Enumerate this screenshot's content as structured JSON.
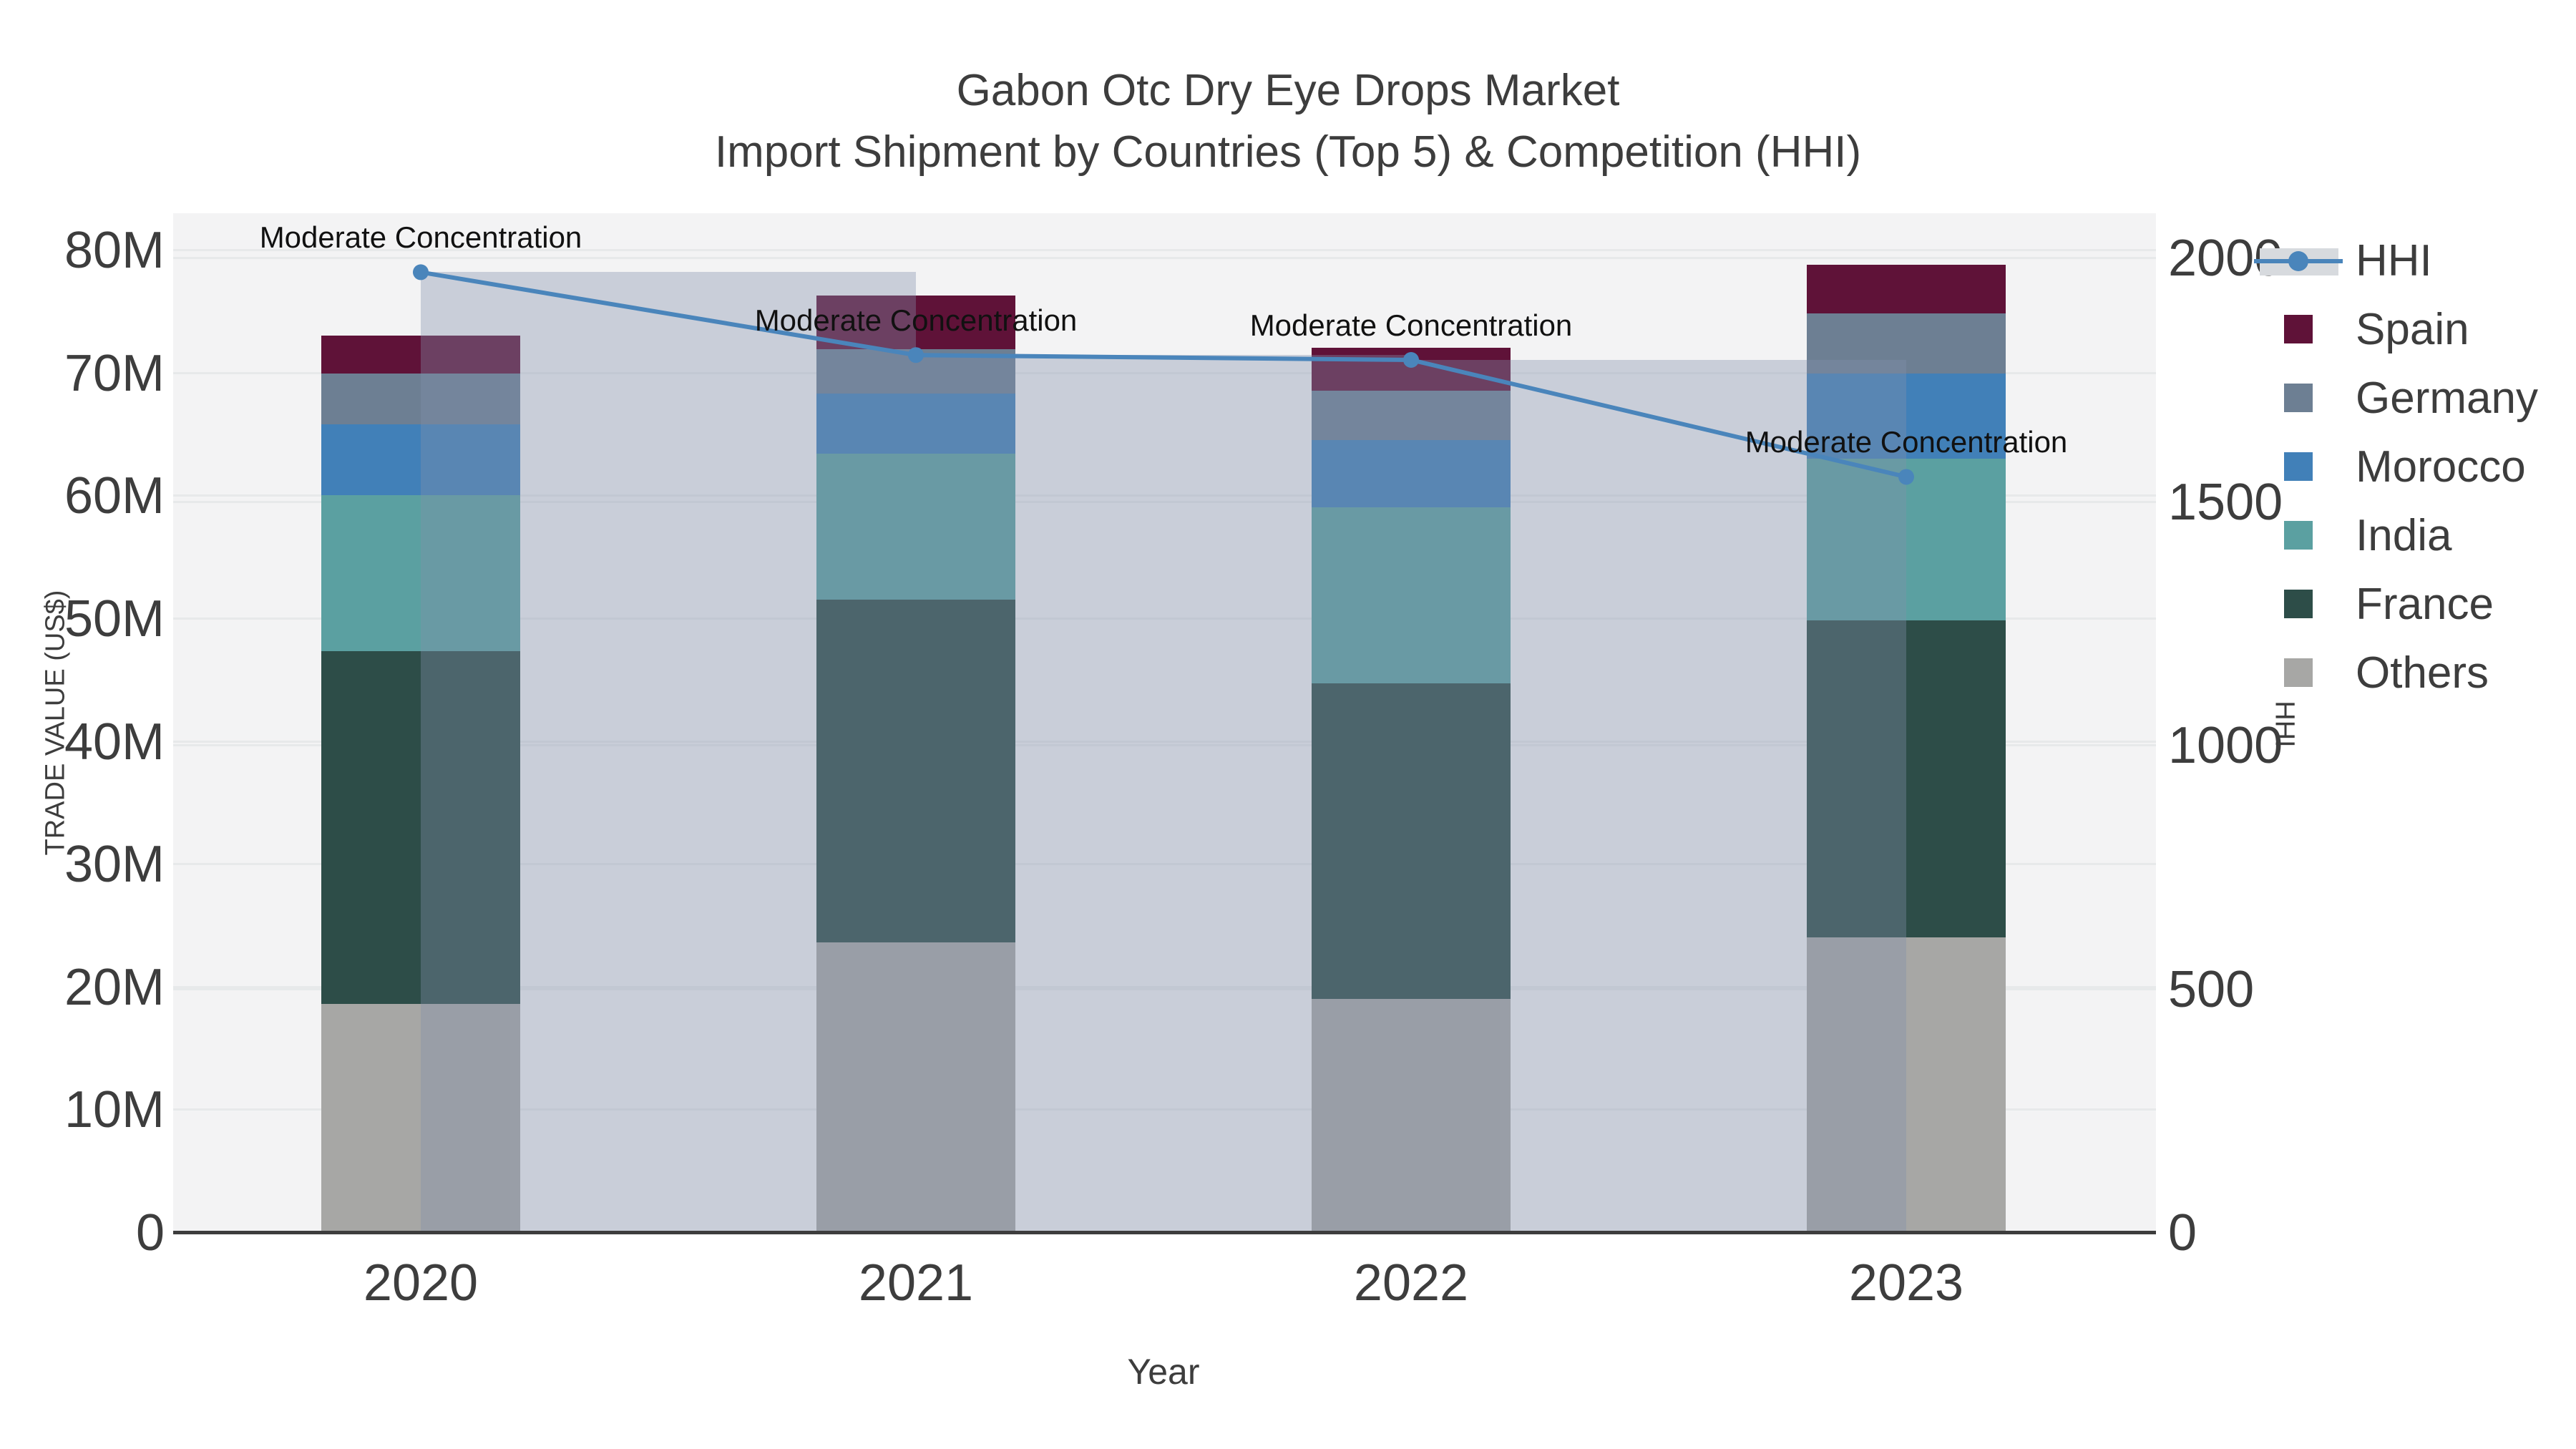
{
  "title": {
    "line1": "Gabon Otc Dry Eye Drops Market",
    "line2": "Import Shipment by Countries (Top 5) & Competition (HHI)"
  },
  "axes": {
    "x": {
      "title": "Year",
      "ticks": [
        "2020",
        "2021",
        "2022",
        "2023"
      ]
    },
    "y_left": {
      "title": "TRADE VALUE (US$)",
      "ticks": [
        "0",
        "10M",
        "20M",
        "30M",
        "40M",
        "50M",
        "60M",
        "70M",
        "80M"
      ]
    },
    "y_right": {
      "title": "HHI",
      "ticks": [
        "0",
        "500",
        "1000",
        "1500",
        "2000"
      ]
    }
  },
  "legend": {
    "items": [
      {
        "label": "HHI",
        "type": "line",
        "color": "#4a85bb"
      },
      {
        "label": "Spain",
        "type": "square",
        "color": "#5f1238"
      },
      {
        "label": "Germany",
        "type": "square",
        "color": "#6d7f93"
      },
      {
        "label": "Morocco",
        "type": "square",
        "color": "#4180b8"
      },
      {
        "label": "India",
        "type": "square",
        "color": "#5ba0a1"
      },
      {
        "label": "France",
        "type": "square",
        "color": "#2d4d48"
      },
      {
        "label": "Others",
        "type": "square",
        "color": "#a7a7a5"
      }
    ]
  },
  "chart_data": {
    "type": "bar+line",
    "categories": [
      "2020",
      "2021",
      "2022",
      "2023"
    ],
    "stack_order_bottom_to_top": [
      "Others",
      "France",
      "India",
      "Morocco",
      "Germany",
      "Spain"
    ],
    "series": [
      {
        "name": "Spain",
        "color": "#5f1238",
        "values": [
          3.1,
          4.4,
          3.5,
          4.0
        ]
      },
      {
        "name": "Germany",
        "color": "#6d7f93",
        "values": [
          4.1,
          3.6,
          4.0,
          4.9
        ]
      },
      {
        "name": "Morocco",
        "color": "#4180b8",
        "values": [
          5.8,
          4.9,
          5.5,
          6.9
        ]
      },
      {
        "name": "India",
        "color": "#5ba0a1",
        "values": [
          12.7,
          11.9,
          14.3,
          13.2
        ]
      },
      {
        "name": "France",
        "color": "#2d4d48",
        "values": [
          28.7,
          27.9,
          25.7,
          25.8
        ]
      },
      {
        "name": "Others",
        "color": "#a7a7a5",
        "values": [
          18.6,
          23.6,
          19.0,
          24.0
        ]
      }
    ],
    "bar_totals_musd": [
      73.0,
      76.3,
      72.0,
      78.8
    ],
    "line_series": {
      "name": "HHI",
      "axis": "right",
      "color": "#4a85bb",
      "band_fill": "rgba(130,143,170,0.37)",
      "values": [
        1970,
        1800,
        1790,
        1550
      ]
    },
    "point_annotations": [
      "Moderate Concentration",
      "Moderate Concentration",
      "Moderate Concentration",
      "Moderate Concentration"
    ],
    "xlabel": "Year",
    "ylabel_left": "TRADE VALUE (US$)",
    "ylabel_right": "HHI",
    "ylim_left_musd": [
      0,
      80
    ],
    "ylim_right": [
      0,
      2000
    ],
    "grid": true,
    "legend_position": "right"
  }
}
